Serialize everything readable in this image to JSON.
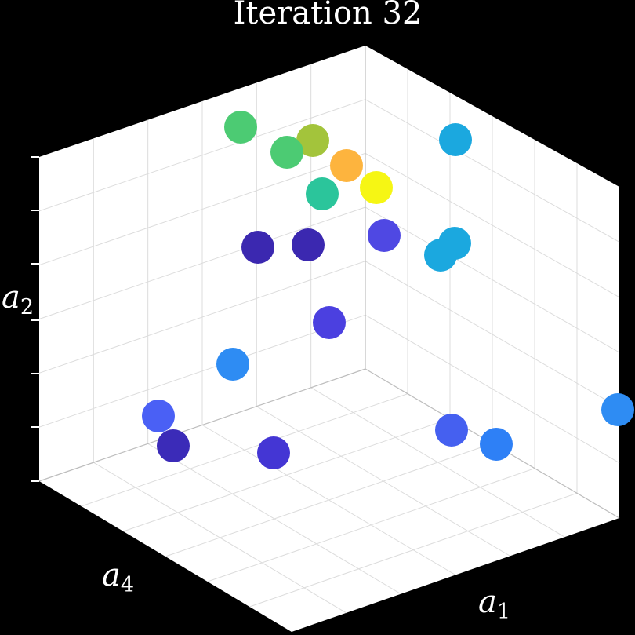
{
  "chart_data": {
    "type": "scatter",
    "title": "Iteration 32",
    "axes": {
      "x": {
        "label_var": "a",
        "label_sub": "1"
      },
      "y": {
        "label_var": "a",
        "label_sub": "4"
      },
      "z": {
        "label_var": "a",
        "label_sub": "2"
      }
    },
    "grid": true,
    "colormap": "parula",
    "view": "3d-box",
    "points": [
      {
        "color": "#4ccb73"
      },
      {
        "color": "#a3c43b"
      },
      {
        "color": "#4ccb73"
      },
      {
        "color": "#fdb43e"
      },
      {
        "color": "#f6f614"
      },
      {
        "color": "#2bc59b"
      },
      {
        "color": "#1ba8df"
      },
      {
        "color": "#1ba8df"
      },
      {
        "color": "#1ba8df"
      },
      {
        "color": "#3b28b0"
      },
      {
        "color": "#3b28b0"
      },
      {
        "color": "#4f48e3"
      },
      {
        "color": "#4b40e0"
      },
      {
        "color": "#2e8cf3"
      },
      {
        "color": "#4a60f5"
      },
      {
        "color": "#3b2bb8"
      },
      {
        "color": "#4436d4"
      },
      {
        "color": "#4560f0"
      },
      {
        "color": "#2e80f6"
      },
      {
        "color": "#2e8cf3"
      }
    ]
  }
}
